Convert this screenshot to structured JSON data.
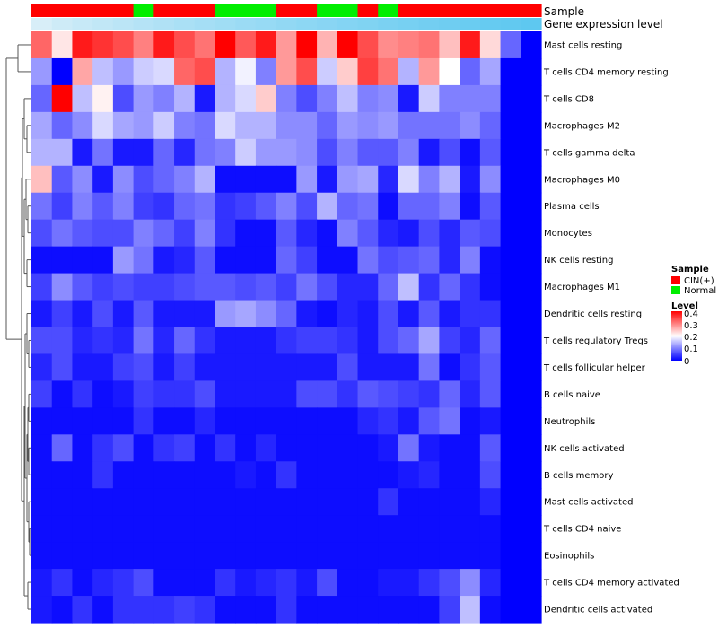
{
  "chart_data": {
    "type": "heatmap",
    "annotation_labels": [
      "Sample",
      "Gene expression level"
    ],
    "sample_groups": [
      "CIN(+)",
      "CIN(+)",
      "CIN(+)",
      "CIN(+)",
      "CIN(+)",
      "Normal",
      "CIN(+)",
      "CIN(+)",
      "CIN(+)",
      "Normal",
      "Normal",
      "Normal",
      "CIN(+)",
      "CIN(+)",
      "Normal",
      "Normal",
      "CIN(+)",
      "Normal",
      "CIN(+)",
      "CIN(+)",
      "CIN(+)",
      "CIN(+)",
      "CIN(+)",
      "CIN(+)",
      "CIN(+)"
    ],
    "rows": [
      "Mast cells resting",
      "T cells CD4 memory resting",
      "T cells CD8",
      "Macrophages M2",
      "T cells gamma delta",
      "Macrophages M0",
      "Plasma cells",
      "Monocytes",
      "NK cells resting",
      "Macrophages M1",
      "Dendritic cells resting",
      "T cells regulatory  Tregs",
      "T cells follicular helper",
      "B cells naive",
      "Neutrophils",
      "NK cells activated",
      "B cells memory",
      "Mast cells activated",
      "T cells CD4 naive",
      "Eosinophils",
      "T cells CD4 memory activated",
      "Dendritic cells activated"
    ],
    "values": [
      [
        0.32,
        0.22,
        0.38,
        0.36,
        0.34,
        0.3,
        0.38,
        0.34,
        0.31,
        0.4,
        0.33,
        0.38,
        0.28,
        0.4,
        0.26,
        0.4,
        0.34,
        0.29,
        0.3,
        0.31,
        0.25,
        0.38,
        0.23,
        0.08,
        0.0
      ],
      [
        0.12,
        0.0,
        0.27,
        0.15,
        0.12,
        0.16,
        0.17,
        0.32,
        0.34,
        0.14,
        0.19,
        0.1,
        0.28,
        0.34,
        0.16,
        0.24,
        0.35,
        0.31,
        0.14,
        0.28,
        0.2,
        0.08,
        0.13,
        0.0,
        0.0
      ],
      [
        0.08,
        0.4,
        0.15,
        0.21,
        0.06,
        0.12,
        0.1,
        0.14,
        0.02,
        0.14,
        0.17,
        0.24,
        0.1,
        0.06,
        0.1,
        0.15,
        0.1,
        0.11,
        0.02,
        0.16,
        0.1,
        0.1,
        0.1,
        0.0,
        0.0
      ],
      [
        0.13,
        0.08,
        0.11,
        0.17,
        0.13,
        0.12,
        0.16,
        0.1,
        0.09,
        0.17,
        0.14,
        0.14,
        0.11,
        0.11,
        0.08,
        0.12,
        0.11,
        0.12,
        0.09,
        0.09,
        0.09,
        0.11,
        0.08,
        0.0,
        0.0
      ],
      [
        0.14,
        0.14,
        0.02,
        0.09,
        0.02,
        0.02,
        0.08,
        0.03,
        0.09,
        0.1,
        0.16,
        0.12,
        0.12,
        0.11,
        0.06,
        0.1,
        0.07,
        0.07,
        0.1,
        0.02,
        0.06,
        0.01,
        0.07,
        0.0,
        0.0
      ],
      [
        0.25,
        0.07,
        0.11,
        0.02,
        0.11,
        0.06,
        0.08,
        0.1,
        0.14,
        0.01,
        0.01,
        0.01,
        0.01,
        0.12,
        0.02,
        0.12,
        0.13,
        0.03,
        0.17,
        0.1,
        0.14,
        0.02,
        0.11,
        0.0,
        0.0
      ],
      [
        0.09,
        0.05,
        0.1,
        0.07,
        0.1,
        0.05,
        0.04,
        0.08,
        0.09,
        0.04,
        0.05,
        0.07,
        0.1,
        0.06,
        0.14,
        0.08,
        0.09,
        0.01,
        0.08,
        0.08,
        0.1,
        0.01,
        0.07,
        0.0,
        0.0
      ],
      [
        0.06,
        0.09,
        0.07,
        0.06,
        0.06,
        0.1,
        0.08,
        0.05,
        0.1,
        0.04,
        0.01,
        0.01,
        0.07,
        0.03,
        0.01,
        0.1,
        0.07,
        0.03,
        0.02,
        0.06,
        0.03,
        0.07,
        0.06,
        0.0,
        0.0
      ],
      [
        0.01,
        0.01,
        0.01,
        0.01,
        0.12,
        0.09,
        0.02,
        0.03,
        0.07,
        0.01,
        0.01,
        0.01,
        0.08,
        0.05,
        0.01,
        0.01,
        0.09,
        0.06,
        0.07,
        0.08,
        0.03,
        0.1,
        0.01,
        0.0,
        0.0
      ],
      [
        0.05,
        0.11,
        0.07,
        0.05,
        0.06,
        0.05,
        0.05,
        0.06,
        0.07,
        0.07,
        0.06,
        0.07,
        0.05,
        0.09,
        0.06,
        0.03,
        0.03,
        0.08,
        0.15,
        0.04,
        0.08,
        0.04,
        0.01,
        0.0,
        0.0
      ],
      [
        0.02,
        0.05,
        0.02,
        0.06,
        0.02,
        0.07,
        0.02,
        0.02,
        0.02,
        0.12,
        0.13,
        0.11,
        0.08,
        0.02,
        0.01,
        0.03,
        0.02,
        0.06,
        0.02,
        0.07,
        0.02,
        0.04,
        0.04,
        0.0,
        0.0
      ],
      [
        0.06,
        0.06,
        0.03,
        0.04,
        0.03,
        0.09,
        0.03,
        0.08,
        0.04,
        0.02,
        0.02,
        0.02,
        0.04,
        0.05,
        0.05,
        0.04,
        0.02,
        0.06,
        0.08,
        0.13,
        0.05,
        0.03,
        0.08,
        0.0,
        0.0
      ],
      [
        0.03,
        0.06,
        0.02,
        0.02,
        0.05,
        0.06,
        0.02,
        0.05,
        0.02,
        0.02,
        0.02,
        0.02,
        0.02,
        0.02,
        0.02,
        0.06,
        0.02,
        0.02,
        0.02,
        0.09,
        0.01,
        0.04,
        0.07,
        0.0,
        0.0
      ],
      [
        0.05,
        0.01,
        0.04,
        0.01,
        0.02,
        0.05,
        0.04,
        0.04,
        0.06,
        0.02,
        0.02,
        0.02,
        0.02,
        0.06,
        0.06,
        0.04,
        0.07,
        0.06,
        0.05,
        0.04,
        0.08,
        0.03,
        0.07,
        0.0,
        0.0
      ],
      [
        0.01,
        0.01,
        0.01,
        0.01,
        0.01,
        0.04,
        0.01,
        0.01,
        0.03,
        0.01,
        0.01,
        0.01,
        0.01,
        0.01,
        0.01,
        0.01,
        0.03,
        0.04,
        0.02,
        0.07,
        0.09,
        0.01,
        0.02,
        0.0,
        0.0
      ],
      [
        0.01,
        0.08,
        0.01,
        0.04,
        0.06,
        0.01,
        0.04,
        0.05,
        0.01,
        0.04,
        0.01,
        0.03,
        0.01,
        0.01,
        0.01,
        0.01,
        0.01,
        0.02,
        0.09,
        0.02,
        0.01,
        0.01,
        0.07,
        0.0,
        0.0
      ],
      [
        0.01,
        0.01,
        0.01,
        0.04,
        0.01,
        0.01,
        0.01,
        0.01,
        0.01,
        0.01,
        0.02,
        0.01,
        0.04,
        0.01,
        0.01,
        0.01,
        0.01,
        0.01,
        0.02,
        0.03,
        0.01,
        0.01,
        0.06,
        0.0,
        0.0
      ],
      [
        0.01,
        0.01,
        0.01,
        0.01,
        0.01,
        0.01,
        0.01,
        0.01,
        0.01,
        0.01,
        0.01,
        0.01,
        0.01,
        0.01,
        0.01,
        0.01,
        0.01,
        0.04,
        0.01,
        0.01,
        0.01,
        0.01,
        0.03,
        0.0,
        0.0
      ],
      [
        0.01,
        0.01,
        0.01,
        0.01,
        0.01,
        0.01,
        0.01,
        0.01,
        0.01,
        0.01,
        0.01,
        0.01,
        0.01,
        0.01,
        0.01,
        0.01,
        0.01,
        0.01,
        0.01,
        0.01,
        0.01,
        0.01,
        0.01,
        0.0,
        0.0
      ],
      [
        0.01,
        0.01,
        0.01,
        0.01,
        0.01,
        0.01,
        0.01,
        0.01,
        0.01,
        0.01,
        0.01,
        0.01,
        0.01,
        0.01,
        0.01,
        0.01,
        0.01,
        0.01,
        0.01,
        0.01,
        0.01,
        0.01,
        0.01,
        0.0,
        0.0
      ],
      [
        0.02,
        0.04,
        0.01,
        0.03,
        0.04,
        0.06,
        0.01,
        0.01,
        0.01,
        0.04,
        0.02,
        0.03,
        0.04,
        0.02,
        0.06,
        0.01,
        0.01,
        0.02,
        0.02,
        0.04,
        0.06,
        0.11,
        0.03,
        0.0,
        0.0
      ],
      [
        0.02,
        0.01,
        0.04,
        0.01,
        0.04,
        0.04,
        0.04,
        0.05,
        0.04,
        0.01,
        0.01,
        0.01,
        0.04,
        0.01,
        0.01,
        0.01,
        0.01,
        0.01,
        0.01,
        0.01,
        0.05,
        0.15,
        0.01,
        0.0,
        0.0
      ]
    ],
    "legend": {
      "sample_title": "Sample",
      "sample_items": [
        {
          "label": "CIN(+)",
          "color": "#ff0000"
        },
        {
          "label": "Normal",
          "color": "#00ee00"
        }
      ],
      "level_title": "Level",
      "level_ticks": [
        "0.4",
        "0.3",
        "0.2",
        "0.1",
        "0"
      ],
      "level_range": [
        0,
        0.4
      ]
    },
    "colors": {
      "low": "#0000ff",
      "mid": "#ffffff",
      "high": "#ff0000",
      "expression_bar": "#5ec8f0",
      "expression_bar_light": "#d8eef8",
      "dendrogram": "#555555"
    }
  }
}
